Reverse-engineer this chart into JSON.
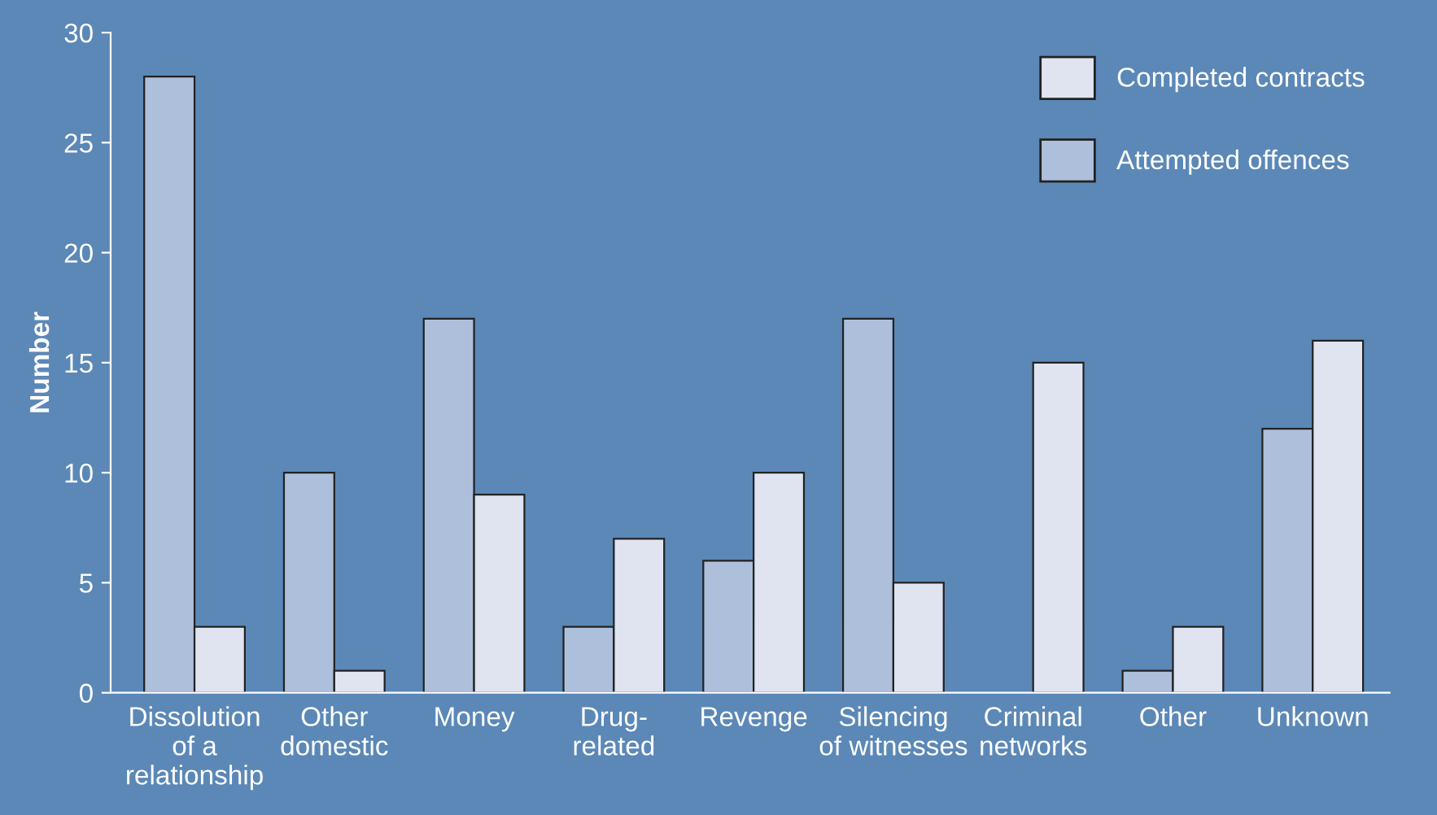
{
  "chart_data": {
    "type": "bar",
    "ylabel": "Number",
    "categories": [
      "Dissolution\nof a\nrelationship",
      "Other\ndomestic",
      "Money",
      "Drug-\nrelated",
      "Revenge",
      "Silencing\nof witnesses",
      "Criminal\nnetworks",
      "Other",
      "Unknown"
    ],
    "series": [
      {
        "name": "Attempted offences",
        "color": "#adbfdb",
        "values": [
          28,
          10,
          17,
          3,
          6,
          17,
          null,
          1,
          12
        ]
      },
      {
        "name": "Completed contracts",
        "color": "#dfe4f0",
        "values": [
          3,
          1,
          9,
          7,
          10,
          5,
          15,
          3,
          16
        ]
      }
    ],
    "ylim": [
      0,
      30
    ],
    "yticks": [
      0,
      5,
      10,
      15,
      20,
      25,
      30
    ],
    "grid": false,
    "legend": "top right"
  }
}
